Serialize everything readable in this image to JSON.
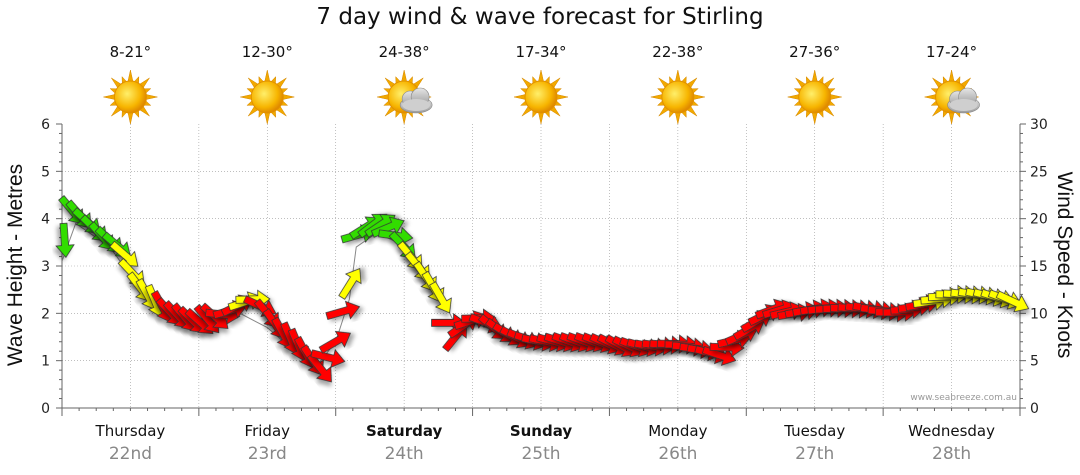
{
  "title": "7 day wind & wave forecast for Stirling",
  "watermark": "www.seabreeze.com.au",
  "days": [
    {
      "name": "Thursday",
      "date": "22nd",
      "temp": "8-21°",
      "icon": "sun-icon",
      "bold": false
    },
    {
      "name": "Friday",
      "date": "23rd",
      "temp": "12-30°",
      "icon": "sun-icon",
      "bold": false
    },
    {
      "name": "Saturday",
      "date": "24th",
      "temp": "24-38°",
      "icon": "sun-cloud-icon",
      "bold": true
    },
    {
      "name": "Sunday",
      "date": "25th",
      "temp": "17-34°",
      "icon": "sun-icon",
      "bold": true
    },
    {
      "name": "Monday",
      "date": "26th",
      "temp": "22-38°",
      "icon": "sun-icon",
      "bold": false
    },
    {
      "name": "Tuesday",
      "date": "27th",
      "temp": "27-36°",
      "icon": "sun-icon",
      "bold": false
    },
    {
      "name": "Wednesday",
      "date": "28th",
      "temp": "17-24°",
      "icon": "sun-cloud-icon",
      "bold": false
    }
  ],
  "colors": {
    "strong": "#ff0000",
    "moderate": "#ffff00",
    "light": "#33dd00",
    "grid": "#999999",
    "wave_line": "#888888",
    "axis": "#666666"
  },
  "chart_data": {
    "type": "line",
    "title": "7 day wind & wave forecast for Stirling",
    "ylabel_left": "Wave Height - Metres",
    "ylabel_right": "Wind Speed - Knots",
    "ylim_left": [
      0,
      6
    ],
    "ylim_right": [
      0,
      30
    ],
    "yticks_left": [
      "0",
      "1",
      "2",
      "3",
      "4",
      "5",
      "6"
    ],
    "yticks_right": [
      "0",
      "5",
      "10",
      "15",
      "20",
      "25",
      "30"
    ],
    "categories": [
      "Thursday 22nd",
      "Friday 23rd",
      "Saturday 24th",
      "Sunday 25th",
      "Monday 26th",
      "Tuesday 27th",
      "Wednesday 28th"
    ],
    "x_unit": "days from start of Thursday",
    "wind_speed_knots": [
      [
        0.0,
        15.5
      ],
      [
        0.05,
        21
      ],
      [
        0.12,
        20.5
      ],
      [
        0.2,
        19.5
      ],
      [
        0.3,
        18
      ],
      [
        0.38,
        17.5
      ],
      [
        0.45,
        16.5
      ],
      [
        0.55,
        13
      ],
      [
        0.62,
        12
      ],
      [
        0.7,
        11
      ],
      [
        0.8,
        10
      ],
      [
        0.9,
        9.5
      ],
      [
        1.0,
        9
      ],
      [
        1.1,
        9.5
      ],
      [
        1.2,
        10
      ],
      [
        1.3,
        11
      ],
      [
        1.4,
        11.5
      ],
      [
        1.5,
        10
      ],
      [
        1.6,
        8
      ],
      [
        1.7,
        7
      ],
      [
        1.8,
        5.5
      ],
      [
        1.9,
        4
      ],
      [
        2.0,
        7
      ],
      [
        2.05,
        10
      ],
      [
        2.1,
        12
      ],
      [
        2.15,
        18
      ],
      [
        2.2,
        19
      ],
      [
        2.3,
        19.5
      ],
      [
        2.4,
        19
      ],
      [
        2.5,
        17
      ],
      [
        2.6,
        15
      ],
      [
        2.7,
        13
      ],
      [
        2.8,
        11
      ],
      [
        2.85,
        7
      ],
      [
        2.95,
        9
      ],
      [
        3.05,
        9.5
      ],
      [
        3.15,
        8.5
      ],
      [
        3.3,
        7.5
      ],
      [
        3.5,
        7
      ],
      [
        3.7,
        7
      ],
      [
        3.9,
        7
      ],
      [
        4.1,
        6.5
      ],
      [
        4.3,
        6.5
      ],
      [
        4.5,
        6.8
      ],
      [
        4.7,
        6
      ],
      [
        4.8,
        5.5
      ],
      [
        4.9,
        7
      ],
      [
        5.0,
        8
      ],
      [
        5.1,
        9.5
      ],
      [
        5.2,
        10.5
      ],
      [
        5.35,
        10
      ],
      [
        5.5,
        10.5
      ],
      [
        5.7,
        10.5
      ],
      [
        5.9,
        10.5
      ],
      [
        6.1,
        10
      ],
      [
        6.3,
        11
      ],
      [
        6.5,
        12
      ],
      [
        6.7,
        12
      ],
      [
        6.9,
        11.5
      ],
      [
        7.0,
        11
      ]
    ],
    "wave_height_m": [
      [
        0.0,
        3.1
      ],
      [
        0.1,
        3.9
      ],
      [
        0.2,
        3.7
      ],
      [
        0.35,
        3.4
      ],
      [
        0.55,
        2.6
      ],
      [
        0.7,
        2.2
      ],
      [
        0.9,
        1.9
      ],
      [
        1.1,
        1.8
      ],
      [
        1.3,
        2.0
      ],
      [
        1.5,
        1.7
      ],
      [
        1.7,
        1.2
      ],
      [
        1.85,
        0.85
      ],
      [
        2.0,
        1.4
      ],
      [
        2.1,
        2.3
      ],
      [
        2.15,
        3.4
      ],
      [
        2.3,
        3.7
      ],
      [
        2.45,
        3.5
      ],
      [
        2.6,
        3.0
      ],
      [
        2.75,
        2.5
      ],
      [
        2.85,
        1.9
      ],
      [
        3.0,
        1.8
      ],
      [
        3.2,
        1.6
      ],
      [
        3.5,
        1.4
      ],
      [
        3.8,
        1.3
      ],
      [
        4.1,
        1.3
      ],
      [
        4.4,
        1.3
      ],
      [
        4.7,
        1.2
      ],
      [
        4.9,
        1.3
      ],
      [
        5.1,
        1.8
      ],
      [
        5.3,
        2.0
      ],
      [
        5.6,
        2.0
      ],
      [
        5.9,
        2.0
      ],
      [
        6.2,
        2.1
      ],
      [
        6.5,
        2.3
      ],
      [
        6.8,
        2.3
      ],
      [
        7.0,
        2.2
      ]
    ],
    "wind_direction_deg": [
      [
        0.0,
        200
      ],
      [
        0.05,
        140
      ],
      [
        0.12,
        140
      ],
      [
        0.2,
        130
      ],
      [
        0.3,
        140
      ],
      [
        0.38,
        130
      ],
      [
        0.45,
        130
      ],
      [
        0.55,
        140
      ],
      [
        0.62,
        150
      ],
      [
        0.7,
        160
      ],
      [
        0.8,
        135
      ],
      [
        0.9,
        140
      ],
      [
        1.0,
        130
      ],
      [
        1.1,
        145
      ],
      [
        1.2,
        80
      ],
      [
        1.3,
        60
      ],
      [
        1.4,
        90
      ],
      [
        1.5,
        140
      ],
      [
        1.6,
        150
      ],
      [
        1.7,
        160
      ],
      [
        1.8,
        150
      ],
      [
        1.9,
        140
      ],
      [
        2.0,
        60
      ],
      [
        2.05,
        80
      ],
      [
        2.1,
        20
      ],
      [
        2.15,
        80
      ],
      [
        2.2,
        60
      ],
      [
        2.3,
        50
      ],
      [
        2.4,
        70
      ],
      [
        2.5,
        140
      ],
      [
        2.6,
        140
      ],
      [
        2.7,
        150
      ],
      [
        2.8,
        150
      ],
      [
        2.85,
        30
      ],
      [
        2.95,
        60
      ],
      [
        3.05,
        90
      ],
      [
        3.15,
        130
      ],
      [
        3.3,
        120
      ],
      [
        3.5,
        100
      ],
      [
        3.7,
        110
      ],
      [
        3.9,
        110
      ],
      [
        4.1,
        120
      ],
      [
        4.3,
        100
      ],
      [
        4.5,
        90
      ],
      [
        4.7,
        100
      ],
      [
        4.8,
        110
      ],
      [
        4.9,
        80
      ],
      [
        5.0,
        60
      ],
      [
        5.1,
        60
      ],
      [
        5.2,
        70
      ],
      [
        5.35,
        80
      ],
      [
        5.5,
        80
      ],
      [
        5.7,
        90
      ],
      [
        5.9,
        100
      ],
      [
        6.1,
        90
      ],
      [
        6.3,
        80
      ],
      [
        6.5,
        90
      ],
      [
        6.7,
        100
      ],
      [
        6.9,
        110
      ],
      [
        7.0,
        120
      ]
    ],
    "legend": "none",
    "grid": true
  }
}
